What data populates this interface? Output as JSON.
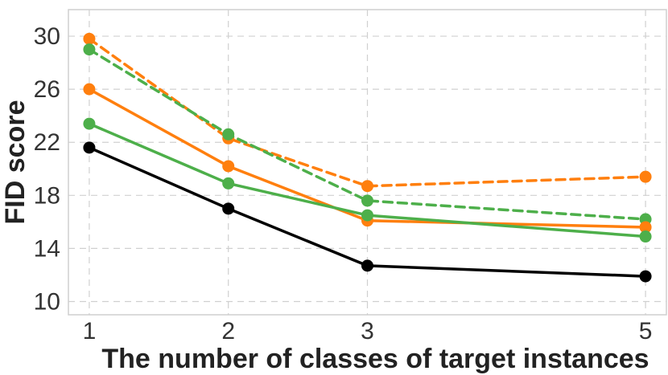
{
  "chart_data": {
    "type": "line",
    "title": "",
    "xlabel": "The number of classes of target instances",
    "ylabel": "FID score",
    "x": [
      1,
      2,
      3,
      5
    ],
    "x_tick_labels": [
      "1",
      "2",
      "3",
      "5"
    ],
    "y_ticks": [
      10,
      14,
      18,
      22,
      26,
      30
    ],
    "y_tick_labels": [
      "10",
      "14",
      "18",
      "22",
      "26",
      "30"
    ],
    "xlim": [
      0.85,
      5.15
    ],
    "ylim": [
      9.0,
      32.0
    ],
    "grid": true,
    "legend": "none",
    "series": [
      {
        "name": "orange-dashed",
        "color": "#ff7f0e",
        "dash": true,
        "values": [
          29.8,
          22.3,
          18.7,
          19.4
        ]
      },
      {
        "name": "green-dashed",
        "color": "#4daf4a",
        "dash": true,
        "values": [
          29.0,
          22.6,
          17.6,
          16.2
        ]
      },
      {
        "name": "orange-solid",
        "color": "#ff7f0e",
        "dash": false,
        "values": [
          26.0,
          20.2,
          16.1,
          15.6
        ]
      },
      {
        "name": "green-solid",
        "color": "#4daf4a",
        "dash": false,
        "values": [
          23.4,
          18.9,
          16.5,
          14.9
        ]
      },
      {
        "name": "black-solid",
        "color": "#000000",
        "dash": false,
        "values": [
          21.6,
          17.0,
          12.7,
          11.9
        ]
      }
    ]
  }
}
